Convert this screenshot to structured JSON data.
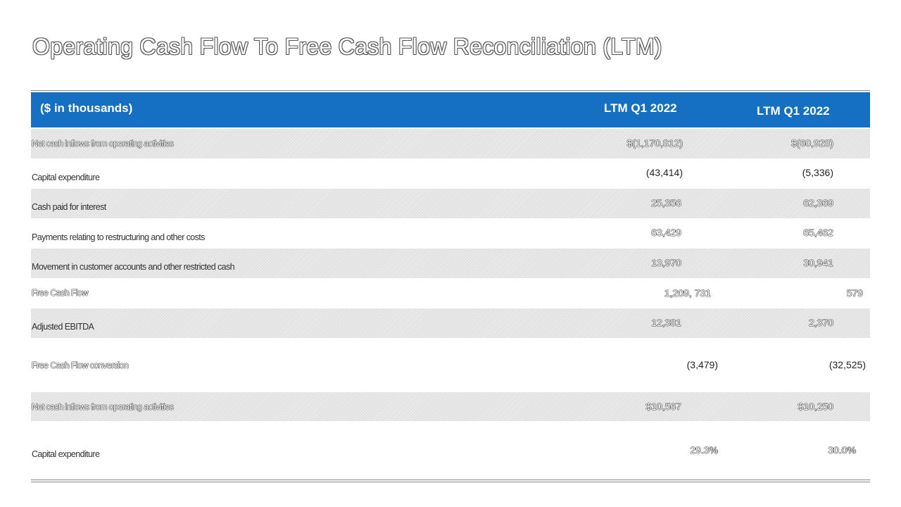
{
  "title": "Operating Cash Flow To Free Cash Flow Reconciliation (LTM)",
  "table": {
    "header": {
      "label": "($ in thousands)",
      "col1": "LTM Q1 2022",
      "col2": "LTM Q1 2022"
    },
    "rows": [
      {
        "label": "Net cash inflows from operating activities",
        "v1": "$(1,170,812)",
        "v2": "$(60,928)"
      },
      {
        "label": "Capital expenditure",
        "v1": "(43,414)",
        "v2": "(5,336)"
      },
      {
        "label": "Cash paid for interest",
        "v1": "25,356",
        "v2": "62,369"
      },
      {
        "label": "Payments relating to restructuring and other costs",
        "v1": "63,429",
        "v2": "65,462"
      },
      {
        "label": "Movement in customer accounts and other restricted cash",
        "v1": "13,970",
        "v2": "30,941"
      },
      {
        "label": "Free Cash Flow",
        "v1": "1,209, 731",
        "v2": "579"
      },
      {
        "label": "Adjusted EBITDA",
        "v1": "12,381",
        "v2": "2,370"
      },
      {
        "label": "Free Cash Flow conversion",
        "v1": "(3,479)",
        "v2": "(32,525)"
      },
      {
        "label": "Net cash inflows from operating activities",
        "v1": "$10,567",
        "v2": "$10,250"
      },
      {
        "label": "Capital expenditure",
        "v1": "29.3%",
        "v2": "30.0%"
      }
    ]
  }
}
